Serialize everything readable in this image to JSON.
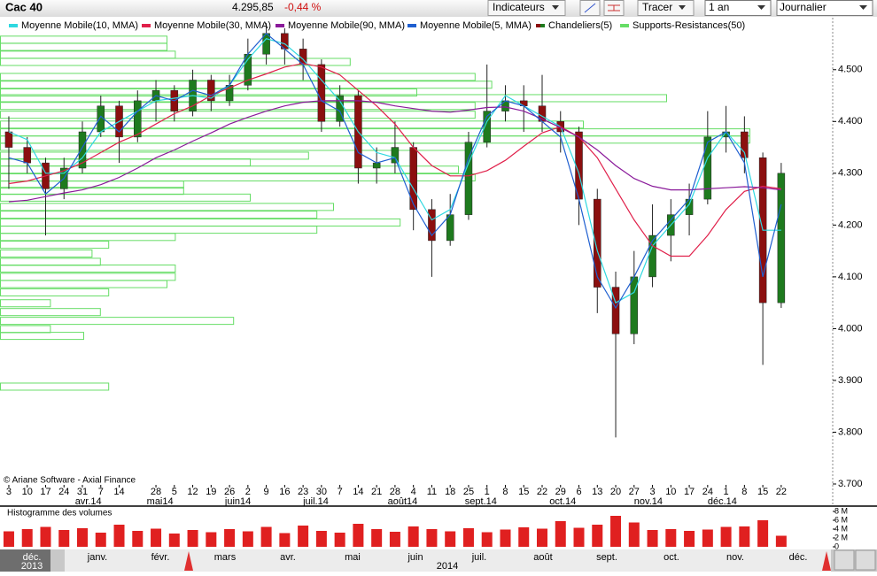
{
  "header": {
    "instrument": "Cac 40",
    "price": "4.295,85",
    "change": "-0,44 %",
    "buttons": [
      "Indicateurs",
      "Tracer",
      "1 an",
      "Journalier"
    ]
  },
  "copyright": "© Ariane Software - Axial Finance",
  "navigator": {
    "months": [
      "déc.",
      "janv.",
      "févr.",
      "mars",
      "avr.",
      "mai",
      "juin",
      "juil.",
      "août",
      "sept.",
      "oct.",
      "nov.",
      "déc."
    ],
    "years": [
      "2013",
      "2014"
    ]
  },
  "chart_data": [
    {
      "type": "candlestick",
      "candle_name": "Chandeliers(5)",
      "up_color": "#1e7a1e",
      "down_color": "#8b0f0f",
      "x": [
        0,
        1,
        2,
        3,
        4,
        5,
        6,
        7,
        8,
        9,
        10,
        11,
        12,
        13,
        14,
        15,
        16,
        17,
        18,
        19,
        20,
        21,
        22,
        23,
        24,
        25,
        26,
        27,
        28,
        29,
        30,
        31,
        32,
        33,
        34,
        35,
        36,
        37,
        38,
        39,
        40,
        41,
        42
      ],
      "open": [
        4380,
        4350,
        4320,
        4270,
        4310,
        4380,
        4430,
        4370,
        4440,
        4460,
        4420,
        4480,
        4440,
        4470,
        4530,
        4570,
        4540,
        4510,
        4400,
        4450,
        4310,
        4320,
        4350,
        4230,
        4170,
        4220,
        4360,
        4420,
        4440,
        4430,
        4400,
        4380,
        4250,
        4080,
        3990,
        4100,
        4180,
        4220,
        4250,
        4370,
        4380,
        4330,
        4050
      ],
      "high": [
        4410,
        4370,
        4330,
        4330,
        4400,
        4450,
        4440,
        4460,
        4480,
        4470,
        4500,
        4490,
        4490,
        4560,
        4590,
        4580,
        4560,
        4520,
        4470,
        4460,
        4350,
        4400,
        4360,
        4250,
        4260,
        4380,
        4510,
        4470,
        4470,
        4490,
        4420,
        4390,
        4270,
        4110,
        4150,
        4240,
        4250,
        4280,
        4420,
        4430,
        4410,
        4340,
        4320
      ],
      "low": [
        4270,
        4300,
        4180,
        4250,
        4300,
        4370,
        4320,
        4360,
        4400,
        4400,
        4410,
        4420,
        4430,
        4460,
        4510,
        4510,
        4480,
        4380,
        4390,
        4280,
        4280,
        4300,
        4190,
        4100,
        4160,
        4210,
        4350,
        4400,
        4380,
        4380,
        4340,
        4200,
        4030,
        3790,
        3970,
        4080,
        4130,
        4180,
        4240,
        4340,
        4300,
        3930,
        4040
      ],
      "close": [
        4350,
        4320,
        4270,
        4310,
        4380,
        4430,
        4370,
        4440,
        4460,
        4420,
        4480,
        4440,
        4470,
        4530,
        4570,
        4540,
        4510,
        4400,
        4450,
        4310,
        4320,
        4350,
        4230,
        4170,
        4220,
        4360,
        4420,
        4440,
        4430,
        4400,
        4380,
        4250,
        4080,
        3990,
        4100,
        4180,
        4220,
        4250,
        4370,
        4380,
        4330,
        4050,
        4300
      ],
      "series": [
        {
          "name": "Moyenne Mobile(10, MMA)",
          "color": "#2fd8e0",
          "values": [
            4380,
            4365,
            4300,
            4300,
            4330,
            4380,
            4400,
            4420,
            4440,
            4445,
            4450,
            4445,
            4470,
            4520,
            4560,
            4550,
            4520,
            4480,
            4440,
            4380,
            4340,
            4330,
            4270,
            4210,
            4230,
            4320,
            4400,
            4450,
            4430,
            4410,
            4390,
            4300,
            4150,
            4050,
            4070,
            4160,
            4200,
            4240,
            4330,
            4380,
            4340,
            4190,
            4190
          ]
        },
        {
          "name": "Moyenne Mobile(30, MMA)",
          "color": "#e0204a",
          "values": [
            4280,
            4285,
            4295,
            4305,
            4320,
            4340,
            4360,
            4375,
            4395,
            4415,
            4430,
            4450,
            4465,
            4480,
            4492,
            4505,
            4512,
            4505,
            4490,
            4460,
            4430,
            4395,
            4350,
            4315,
            4295,
            4295,
            4305,
            4325,
            4352,
            4378,
            4390,
            4370,
            4330,
            4270,
            4210,
            4160,
            4140,
            4140,
            4180,
            4230,
            4265,
            4275,
            4270
          ]
        },
        {
          "name": "Moyenne Mobile(90, MMA)",
          "color": "#8a1a9a",
          "values": [
            4245,
            4248,
            4255,
            4262,
            4268,
            4278,
            4292,
            4310,
            4330,
            4345,
            4362,
            4378,
            4395,
            4408,
            4420,
            4430,
            4437,
            4440,
            4440,
            4440,
            4437,
            4430,
            4425,
            4420,
            4418,
            4422,
            4427,
            4428,
            4420,
            4405,
            4388,
            4370,
            4345,
            4315,
            4290,
            4275,
            4268,
            4268,
            4270,
            4272,
            4274,
            4272,
            4268
          ]
        },
        {
          "name": "Moyenne Mobile(5, MMA)",
          "color": "#1f5fd0",
          "values": [
            4330,
            4320,
            4260,
            4290,
            4350,
            4410,
            4380,
            4420,
            4450,
            4440,
            4460,
            4450,
            4470,
            4530,
            4570,
            4540,
            4510,
            4440,
            4420,
            4340,
            4320,
            4330,
            4240,
            4180,
            4220,
            4330,
            4410,
            4440,
            4430,
            4400,
            4370,
            4250,
            4100,
            4040,
            4100,
            4170,
            4210,
            4250,
            4360,
            4380,
            4320,
            4100,
            4240
          ]
        }
      ],
      "supports": {
        "name": "Supports-Resistances(50)",
        "color": "#66dd66",
        "xlim": [
          0,
          100
        ],
        "levels": [
          4558,
          4544,
          4529,
          4515,
          4486,
          4471,
          4456,
          4445,
          4430,
          4413,
          4394,
          4379,
          4365,
          4351,
          4334,
          4321,
          4307,
          4292,
          4278,
          4266,
          4253,
          4235,
          4220,
          4205,
          4191,
          4177,
          4162,
          4145,
          4129,
          4116,
          4100,
          4086,
          4070,
          4049,
          4032,
          4015,
          3999,
          3986,
          3888
        ],
        "values": [
          20,
          20,
          21,
          42,
          57,
          59,
          50,
          80,
          57,
          57,
          70,
          90,
          90,
          56,
          37,
          30,
          55,
          57,
          22,
          22,
          30,
          40,
          38,
          48,
          38,
          21,
          13,
          11,
          12,
          21,
          21,
          20,
          13,
          6,
          12,
          28,
          6,
          10,
          13
        ]
      },
      "xlim": [
        -0.48,
        44.8
      ],
      "xticks": [
        {
          "value": 0,
          "label": "3"
        },
        {
          "value": 1,
          "label": "10"
        },
        {
          "value": 2,
          "label": "17"
        },
        {
          "value": 3,
          "label": "24"
        },
        {
          "value": 4,
          "label": "31"
        },
        {
          "value": 5,
          "label": "7"
        },
        {
          "value": 6,
          "label": "14"
        },
        {
          "value": 8,
          "label": "28"
        },
        {
          "value": 9,
          "label": "5"
        },
        {
          "value": 10,
          "label": "12"
        },
        {
          "value": 11,
          "label": "19"
        },
        {
          "value": 12,
          "label": "26"
        },
        {
          "value": 13,
          "label": "2"
        },
        {
          "value": 14,
          "label": "9"
        },
        {
          "value": 15,
          "label": "16"
        },
        {
          "value": 16,
          "label": "23"
        },
        {
          "value": 17,
          "label": "30"
        },
        {
          "value": 18,
          "label": "7"
        },
        {
          "value": 19,
          "label": "14"
        },
        {
          "value": 20,
          "label": "21"
        },
        {
          "value": 21,
          "label": "28"
        },
        {
          "value": 22,
          "label": "4"
        },
        {
          "value": 23,
          "label": "11"
        },
        {
          "value": 24,
          "label": "18"
        },
        {
          "value": 25,
          "label": "25"
        },
        {
          "value": 26,
          "label": "1"
        },
        {
          "value": 27,
          "label": "8"
        },
        {
          "value": 28,
          "label": "15"
        },
        {
          "value": 29,
          "label": "22"
        },
        {
          "value": 30,
          "label": "29"
        },
        {
          "value": 31,
          "label": "6"
        },
        {
          "value": 32,
          "label": "13"
        },
        {
          "value": 33,
          "label": "20"
        },
        {
          "value": 34,
          "label": "27"
        },
        {
          "value": 35,
          "label": "3"
        },
        {
          "value": 36,
          "label": "10"
        },
        {
          "value": 37,
          "label": "17"
        },
        {
          "value": 38,
          "label": "24"
        },
        {
          "value": 39,
          "label": "1"
        },
        {
          "value": 40,
          "label": "8"
        },
        {
          "value": 41,
          "label": "15"
        },
        {
          "value": 42,
          "label": "22"
        }
      ],
      "month_ticks": [
        {
          "value": 3.6,
          "label": "avr.14"
        },
        {
          "value": 7.5,
          "label": "mai14"
        },
        {
          "value": 11.75,
          "label": "juin14"
        },
        {
          "value": 16,
          "label": "juil.14"
        },
        {
          "value": 20.6,
          "label": "août14"
        },
        {
          "value": 24.8,
          "label": "sept.14"
        },
        {
          "value": 29.4,
          "label": "oct.14"
        },
        {
          "value": 34,
          "label": "nov.14"
        },
        {
          "value": 38,
          "label": "déc.14"
        }
      ],
      "ylim": [
        3700,
        4597
      ],
      "yticks": [
        {
          "value": 3700,
          "label": "3.700"
        },
        {
          "value": 3800,
          "label": "3.800"
        },
        {
          "value": 3900,
          "label": "3.900"
        },
        {
          "value": 4000,
          "label": "4.000"
        },
        {
          "value": 4100,
          "label": "4.100"
        },
        {
          "value": 4200,
          "label": "4.200"
        },
        {
          "value": 4300,
          "label": "4.300"
        },
        {
          "value": 4400,
          "label": "4.400"
        },
        {
          "value": 4500,
          "label": "4.500"
        }
      ]
    },
    {
      "type": "bar",
      "title": "Histogramme des volumes",
      "color": "#e02020",
      "x": [
        0,
        1,
        2,
        3,
        4,
        5,
        6,
        7,
        8,
        9,
        10,
        11,
        12,
        13,
        14,
        15,
        16,
        17,
        18,
        19,
        20,
        21,
        22,
        23,
        24,
        25,
        26,
        27,
        28,
        29,
        30,
        31,
        32,
        33,
        34,
        35,
        36,
        37,
        38,
        39,
        40,
        41,
        42
      ],
      "values": [
        3.5,
        4,
        4.5,
        3.8,
        4.2,
        3.2,
        5,
        3.6,
        4.1,
        3,
        3.8,
        3.3,
        4,
        3.5,
        4.5,
        3.1,
        4.8,
        3.6,
        3.2,
        5.2,
        4,
        3.4,
        4.6,
        4,
        3.5,
        4.2,
        3.3,
        3.9,
        4.4,
        4.1,
        5.8,
        4.3,
        5,
        7,
        5.5,
        3.8,
        4,
        3.6,
        3.9,
        4.5,
        4.6,
        6,
        2.5
      ],
      "xlim": [
        -0.48,
        44.8
      ],
      "ylim": [
        0,
        8.6
      ],
      "yticks": [
        0,
        {
          "value": 2,
          "label": "2 M"
        },
        {
          "value": 4,
          "label": "4 M"
        },
        {
          "value": 6,
          "label": "6 M"
        },
        {
          "value": 8,
          "label": "8 M"
        }
      ]
    }
  ]
}
